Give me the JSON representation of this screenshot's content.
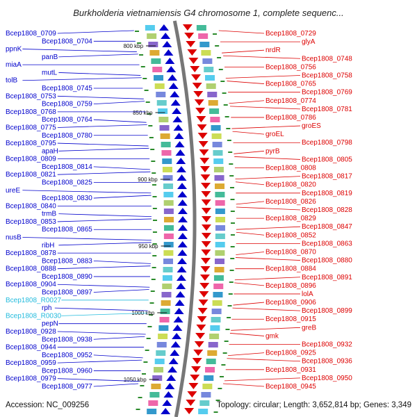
{
  "title": "Burkholderia vietnamiensis G4 chromosome 1, complete sequenc...",
  "accession": "Accession: NC_009256",
  "summary": "Topology: circular; Length: 3,652,814 bp; Genes: 3,349",
  "colors": {
    "forward": "#0000cc",
    "reverse": "#dd0000",
    "rna": "#22bbdd",
    "backbone": "#777777",
    "tick": "#2a8a2a"
  },
  "kbp_marks": [
    "800 kbp",
    "850 kbp",
    "900 kbp",
    "950 kbp",
    "1000 kbp",
    "1050 kbp"
  ],
  "left_labels": [
    {
      "text": "Bcep1808_0709",
      "kind": "forward"
    },
    {
      "text": "Bcep1808_0704",
      "kind": "forward"
    },
    {
      "text": "ppnK",
      "kind": "forward"
    },
    {
      "text": "panB",
      "kind": "forward"
    },
    {
      "text": "miaA",
      "kind": "forward"
    },
    {
      "text": "mutL",
      "kind": "forward"
    },
    {
      "text": "tolB",
      "kind": "forward"
    },
    {
      "text": "Bcep1808_0745",
      "kind": "forward"
    },
    {
      "text": "Bcep1808_0753",
      "kind": "forward"
    },
    {
      "text": "Bcep1808_0759",
      "kind": "forward"
    },
    {
      "text": "Bcep1808_0768",
      "kind": "forward"
    },
    {
      "text": "Bcep1808_0764",
      "kind": "forward"
    },
    {
      "text": "Bcep1808_0775",
      "kind": "forward"
    },
    {
      "text": "Bcep1808_0780",
      "kind": "forward"
    },
    {
      "text": "Bcep1808_0795",
      "kind": "forward"
    },
    {
      "text": "apaH",
      "kind": "forward"
    },
    {
      "text": "Bcep1808_0809",
      "kind": "forward"
    },
    {
      "text": "Bcep1808_0814",
      "kind": "forward"
    },
    {
      "text": "Bcep1808_0821",
      "kind": "forward"
    },
    {
      "text": "Bcep1808_0825",
      "kind": "forward"
    },
    {
      "text": "ureE",
      "kind": "forward"
    },
    {
      "text": "Bcep1808_0830",
      "kind": "forward"
    },
    {
      "text": "Bcep1808_0840",
      "kind": "forward"
    },
    {
      "text": "trmB",
      "kind": "forward"
    },
    {
      "text": "Bcep1808_0853",
      "kind": "forward"
    },
    {
      "text": "Bcep1808_0865",
      "kind": "forward"
    },
    {
      "text": "nusB",
      "kind": "forward"
    },
    {
      "text": "ribH",
      "kind": "forward"
    },
    {
      "text": "Bcep1808_0878",
      "kind": "forward"
    },
    {
      "text": "Bcep1808_0883",
      "kind": "forward"
    },
    {
      "text": "Bcep1808_0888",
      "kind": "forward"
    },
    {
      "text": "Bcep1808_0890",
      "kind": "forward"
    },
    {
      "text": "Bcep1808_0904",
      "kind": "forward"
    },
    {
      "text": "Bcep1808_0897",
      "kind": "forward"
    },
    {
      "text": "Bcep1808_R0027",
      "kind": "rna"
    },
    {
      "text": "rph",
      "kind": "forward"
    },
    {
      "text": "Bcep1808_R0030",
      "kind": "rna"
    },
    {
      "text": "pepN",
      "kind": "forward"
    },
    {
      "text": "Bcep1808_0928",
      "kind": "forward"
    },
    {
      "text": "Bcep1808_0938",
      "kind": "forward"
    },
    {
      "text": "Bcep1808_0944",
      "kind": "forward"
    },
    {
      "text": "Bcep1808_0952",
      "kind": "forward"
    },
    {
      "text": "Bcep1808_0959",
      "kind": "forward"
    },
    {
      "text": "Bcep1808_0960",
      "kind": "forward"
    },
    {
      "text": "Bcep1808_0979",
      "kind": "forward"
    },
    {
      "text": "Bcep1808_0977",
      "kind": "forward"
    }
  ],
  "right_labels": [
    {
      "text": "Bcep1808_0729",
      "kind": "reverse"
    },
    {
      "text": "glyA",
      "kind": "reverse"
    },
    {
      "text": "nrdR",
      "kind": "reverse"
    },
    {
      "text": "Bcep1808_0748",
      "kind": "reverse"
    },
    {
      "text": "Bcep1808_0756",
      "kind": "reverse"
    },
    {
      "text": "Bcep1808_0758",
      "kind": "reverse"
    },
    {
      "text": "Bcep1808_0765",
      "kind": "reverse"
    },
    {
      "text": "Bcep1808_0769",
      "kind": "reverse"
    },
    {
      "text": "Bcep1808_0774",
      "kind": "reverse"
    },
    {
      "text": "Bcep1808_0781",
      "kind": "reverse"
    },
    {
      "text": "Bcep1808_0786",
      "kind": "reverse"
    },
    {
      "text": "groES",
      "kind": "reverse"
    },
    {
      "text": "groEL",
      "kind": "reverse"
    },
    {
      "text": "Bcep1808_0798",
      "kind": "reverse"
    },
    {
      "text": "pyrB",
      "kind": "reverse"
    },
    {
      "text": "Bcep1808_0805",
      "kind": "reverse"
    },
    {
      "text": "Bcep1808_0808",
      "kind": "reverse"
    },
    {
      "text": "Bcep1808_0817",
      "kind": "reverse"
    },
    {
      "text": "Bcep1808_0820",
      "kind": "reverse"
    },
    {
      "text": "Bcep1808_0819",
      "kind": "reverse"
    },
    {
      "text": "Bcep1808_0826",
      "kind": "reverse"
    },
    {
      "text": "Bcep1808_0828",
      "kind": "reverse"
    },
    {
      "text": "Bcep1808_0829",
      "kind": "reverse"
    },
    {
      "text": "Bcep1808_0847",
      "kind": "reverse"
    },
    {
      "text": "Bcep1808_0852",
      "kind": "reverse"
    },
    {
      "text": "Bcep1808_0863",
      "kind": "reverse"
    },
    {
      "text": "Bcep1808_0870",
      "kind": "reverse"
    },
    {
      "text": "Bcep1808_0880",
      "kind": "reverse"
    },
    {
      "text": "Bcep1808_0884",
      "kind": "reverse"
    },
    {
      "text": "Bcep1808_0891",
      "kind": "reverse"
    },
    {
      "text": "Bcep1808_0896",
      "kind": "reverse"
    },
    {
      "text": "lolA",
      "kind": "reverse"
    },
    {
      "text": "Bcep1808_0906",
      "kind": "reverse"
    },
    {
      "text": "Bcep1808_0899",
      "kind": "reverse"
    },
    {
      "text": "Bcep1808_0915",
      "kind": "reverse"
    },
    {
      "text": "greB",
      "kind": "reverse"
    },
    {
      "text": "gmk",
      "kind": "reverse"
    },
    {
      "text": "Bcep1808_0932",
      "kind": "reverse"
    },
    {
      "text": "Bcep1808_0925",
      "kind": "reverse"
    },
    {
      "text": "Bcep1808_0936",
      "kind": "reverse"
    },
    {
      "text": "Bcep1808_0931",
      "kind": "reverse"
    },
    {
      "text": "Bcep1808_0950",
      "kind": "reverse"
    },
    {
      "text": "Bcep1808_0945",
      "kind": "reverse"
    }
  ]
}
